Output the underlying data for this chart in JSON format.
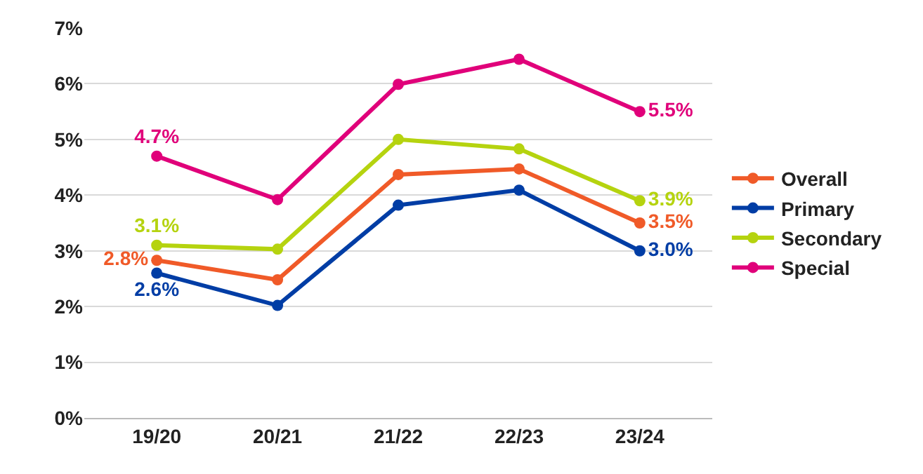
{
  "chart_data": {
    "type": "line",
    "categories": [
      "19/20",
      "20/21",
      "21/22",
      "22/23",
      "23/24"
    ],
    "series": [
      {
        "name": "Overall",
        "color": "#f05a28",
        "values": [
          2.83,
          2.48,
          4.37,
          4.47,
          3.5
        ],
        "value_labels": [
          "2.8%",
          null,
          null,
          null,
          "3.5%"
        ]
      },
      {
        "name": "Primary",
        "color": "#003da5",
        "values": [
          2.6,
          2.02,
          3.82,
          4.09,
          3.0
        ],
        "value_labels": [
          "2.6%",
          null,
          null,
          null,
          "3.0%"
        ]
      },
      {
        "name": "Secondary",
        "color": "#b5d30f",
        "values": [
          3.1,
          3.03,
          5.0,
          4.83,
          3.9
        ],
        "value_labels": [
          "3.1%",
          null,
          null,
          null,
          "3.9%"
        ]
      },
      {
        "name": "Special",
        "color": "#e0007a",
        "values": [
          4.7,
          3.92,
          5.99,
          6.44,
          5.5
        ],
        "value_labels": [
          "4.7%",
          null,
          null,
          null,
          "5.5%"
        ]
      }
    ],
    "ylim": [
      0,
      7
    ],
    "yticks": [
      {
        "value": 0,
        "label": "0%"
      },
      {
        "value": 1,
        "label": "1%"
      },
      {
        "value": 2,
        "label": "2%"
      },
      {
        "value": 3,
        "label": "3%"
      },
      {
        "value": 4,
        "label": "4%"
      },
      {
        "value": 5,
        "label": "5%"
      },
      {
        "value": 6,
        "label": "6%"
      },
      {
        "value": 7,
        "label": "7%"
      }
    ],
    "grid": "y",
    "legend": "right",
    "marker": "circle",
    "line_style": "solid"
  }
}
